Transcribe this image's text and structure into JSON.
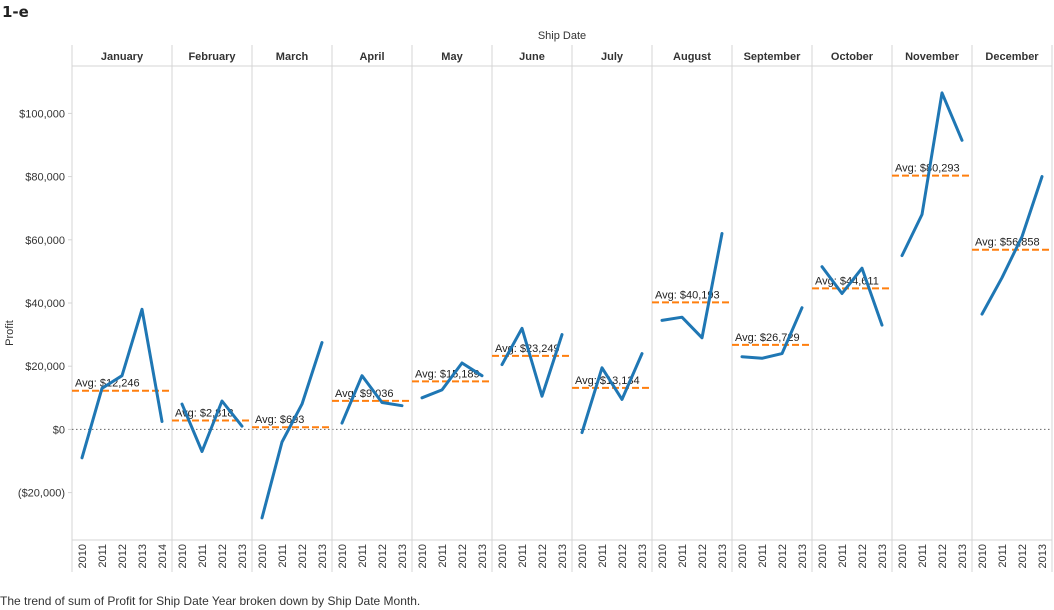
{
  "sheet": {
    "title": "1-e",
    "caption": "The trend of sum of Profit for Ship Date Year broken down by Ship Date Month."
  },
  "chart_data": {
    "type": "line",
    "title": "",
    "column_header": "Ship Date",
    "ylabel": "Profit",
    "ylim": [
      -35000,
      115000
    ],
    "y_ticks": [
      {
        "value": 100000,
        "label": "$100,000"
      },
      {
        "value": 80000,
        "label": "$80,000"
      },
      {
        "value": 60000,
        "label": "$60,000"
      },
      {
        "value": 40000,
        "label": "$40,000"
      },
      {
        "value": 20000,
        "label": "$20,000"
      },
      {
        "value": 0,
        "label": "$0"
      },
      {
        "value": -20000,
        "label": "($20,000)"
      }
    ],
    "grid": false,
    "zero_line": "dotted",
    "line_color": "#1f77b4",
    "avg_color": "#ff7f0e",
    "panels": [
      {
        "month": "January",
        "years": [
          "2010",
          "2011",
          "2012",
          "2013",
          "2014"
        ],
        "values": [
          -9000,
          13000,
          17000,
          38000,
          2500
        ],
        "avg": 12246,
        "avg_label": "Avg: $12,246"
      },
      {
        "month": "February",
        "years": [
          "2010",
          "2011",
          "2012",
          "2013"
        ],
        "values": [
          8000,
          -7000,
          9000,
          1000
        ],
        "avg": 2818,
        "avg_label": "Avg: $2,818"
      },
      {
        "month": "March",
        "years": [
          "2010",
          "2011",
          "2012",
          "2013"
        ],
        "values": [
          -28000,
          -4000,
          8000,
          27500
        ],
        "avg": 693,
        "avg_label": "Avg: $693"
      },
      {
        "month": "April",
        "years": [
          "2010",
          "2011",
          "2012",
          "2013"
        ],
        "values": [
          2000,
          17000,
          8500,
          7500
        ],
        "avg": 9036,
        "avg_label": "Avg: $9,036"
      },
      {
        "month": "May",
        "years": [
          "2010",
          "2011",
          "2012",
          "2013"
        ],
        "values": [
          10000,
          12500,
          21000,
          17000
        ],
        "avg": 15189,
        "avg_label": "Avg: $15,189"
      },
      {
        "month": "June",
        "years": [
          "2010",
          "2011",
          "2012",
          "2013"
        ],
        "values": [
          20500,
          32000,
          10500,
          30000
        ],
        "avg": 23249,
        "avg_label": "Avg: $23,249"
      },
      {
        "month": "July",
        "years": [
          "2010",
          "2011",
          "2012",
          "2013"
        ],
        "values": [
          -1000,
          19500,
          9500,
          24000
        ],
        "avg": 13134,
        "avg_label": "Avg: $13,134"
      },
      {
        "month": "August",
        "years": [
          "2010",
          "2011",
          "2012",
          "2013"
        ],
        "values": [
          34500,
          35500,
          29000,
          62000
        ],
        "avg": 40193,
        "avg_label": "Avg: $40,193"
      },
      {
        "month": "September",
        "years": [
          "2010",
          "2011",
          "2012",
          "2013"
        ],
        "values": [
          23000,
          22500,
          24000,
          38500
        ],
        "avg": 26729,
        "avg_label": "Avg: $26,729"
      },
      {
        "month": "October",
        "years": [
          "2010",
          "2011",
          "2012",
          "2013"
        ],
        "values": [
          51500,
          43000,
          51000,
          33000
        ],
        "avg": 44611,
        "avg_label": "Avg: $44,611"
      },
      {
        "month": "November",
        "years": [
          "2010",
          "2011",
          "2012",
          "2013"
        ],
        "values": [
          55000,
          68000,
          106500,
          91500
        ],
        "avg": 80293,
        "avg_label": "Avg: $80,293"
      },
      {
        "month": "December",
        "years": [
          "2010",
          "2011",
          "2012",
          "2013"
        ],
        "values": [
          36500,
          48000,
          61000,
          80000
        ],
        "avg": 56858,
        "avg_label": "Avg: $56,858"
      }
    ]
  }
}
